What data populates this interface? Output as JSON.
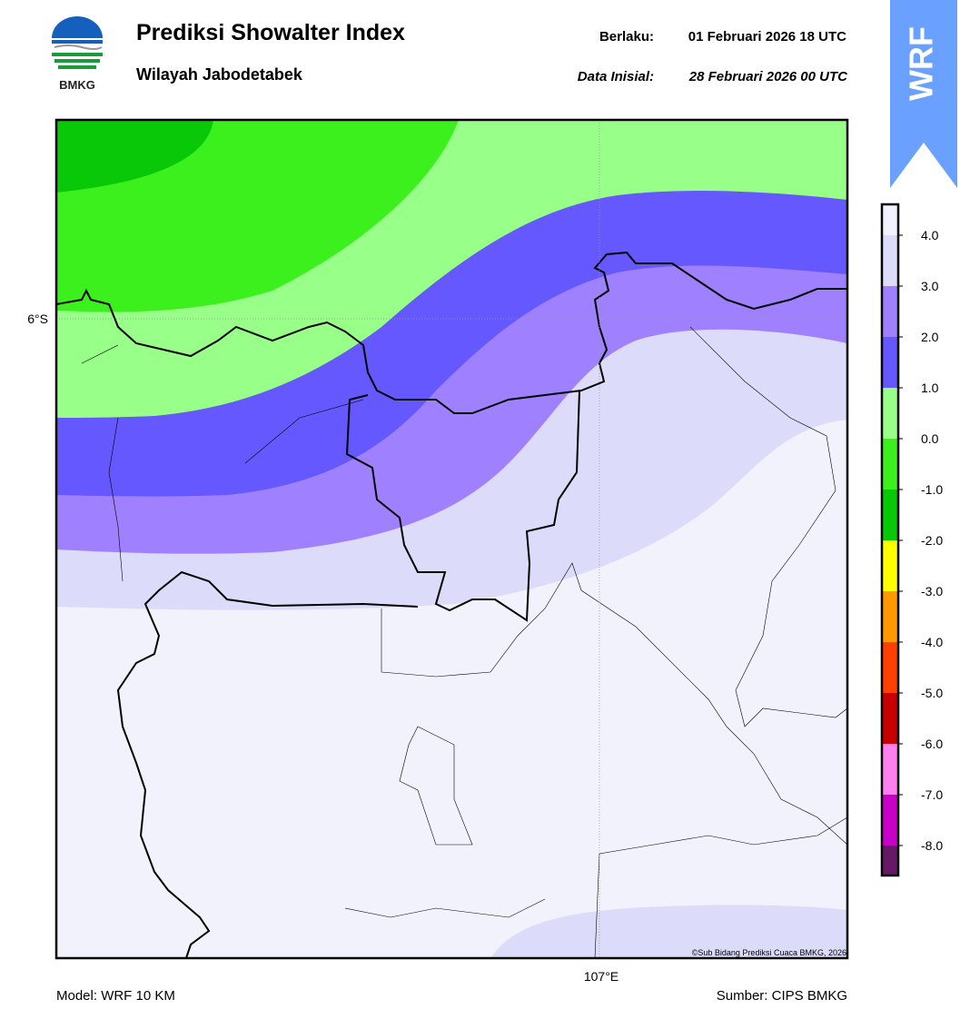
{
  "logo": {
    "text": "BMKG"
  },
  "header": {
    "title": "Prediksi Showalter Index",
    "subtitle": "Wilayah Jabodetabek",
    "valid_label": "Berlaku:",
    "valid_time": "01 Februari 2026 18 UTC",
    "init_label": "Data Inisial:",
    "init_time": "28 Februari 2026 00 UTC"
  },
  "badge": "WRF",
  "map": {
    "lat_label": "6°S",
    "lon_label": "107°E",
    "credit": "©Sub Bidang Prediksi Cuaca BMKG, 2026"
  },
  "colorbar": {
    "labels": [
      "4.0",
      "3.0",
      "2.0",
      "1.0",
      "0.0",
      "-1.0",
      "-2.0",
      "-3.0",
      "-4.0",
      "-5.0",
      "-6.0",
      "-7.0",
      "-8.0"
    ],
    "colors": [
      "#f2f2fe",
      "#dcdcfa",
      "#9f80ff",
      "#6658ff",
      "#98ff88",
      "#3cf01e",
      "#08c808",
      "#ffff00",
      "#ff9900",
      "#ff4000",
      "#c80000",
      "#ff80ee",
      "#c800c8",
      "#661a66"
    ]
  },
  "footer": {
    "model": "Model: WRF 10 KM",
    "source": "Sumber: CIPS BMKG"
  }
}
